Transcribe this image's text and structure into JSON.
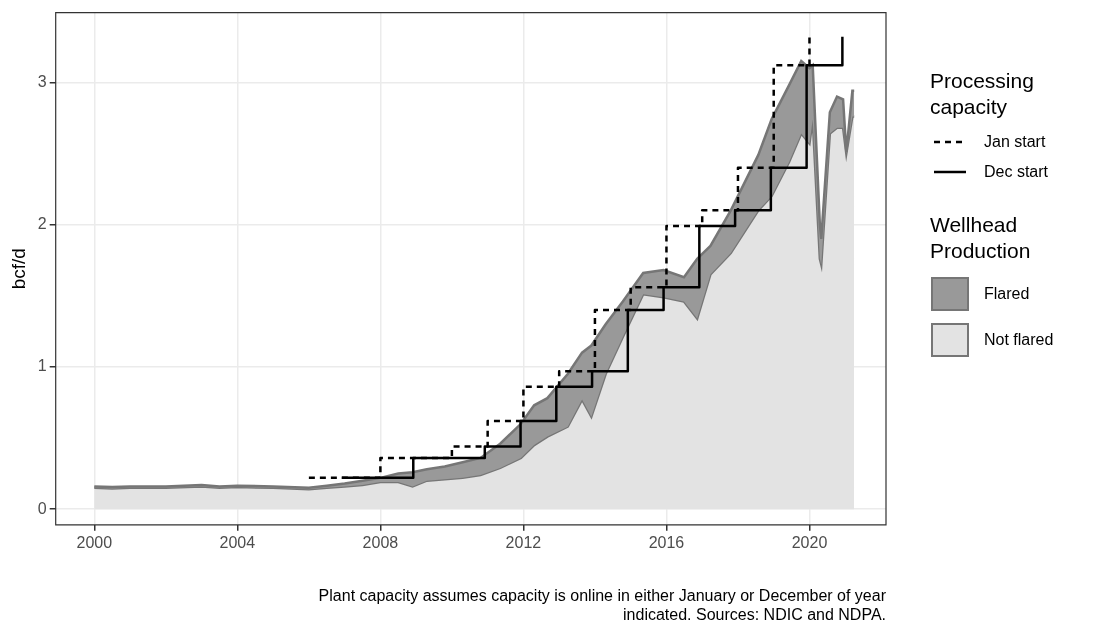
{
  "chart_data": {
    "type": "area",
    "stacked": true,
    "ylabel": "bcf/d",
    "x": [
      2000.0,
      2000.5,
      2001.0,
      2002.0,
      2003.0,
      2003.5,
      2004.0,
      2005.0,
      2006.0,
      2006.5,
      2007.0,
      2007.5,
      2008.0,
      2008.5,
      2008.9,
      2009.3,
      2009.8,
      2010.3,
      2010.8,
      2011.35,
      2011.93,
      2012.3,
      2012.67,
      2013.24,
      2013.64,
      2013.9,
      2014.3,
      2014.78,
      2015.35,
      2015.92,
      2016.49,
      2016.86,
      2017.23,
      2017.8,
      2018.57,
      2018.94,
      2019.43,
      2019.77,
      2020.0,
      2020.09,
      2020.29,
      2020.33,
      2020.57,
      2020.77,
      2020.94,
      2021.03,
      2021.2,
      2021.25
    ],
    "series": [
      {
        "name": "Not flared",
        "color": "#e3e3e3",
        "values": [
          0.15,
          0.145,
          0.15,
          0.15,
          0.16,
          0.15,
          0.155,
          0.15,
          0.14,
          0.15,
          0.16,
          0.17,
          0.19,
          0.19,
          0.16,
          0.2,
          0.21,
          0.22,
          0.24,
          0.29,
          0.36,
          0.45,
          0.51,
          0.58,
          0.77,
          0.65,
          0.95,
          1.21,
          1.51,
          1.49,
          1.46,
          1.34,
          1.65,
          1.8,
          2.1,
          2.2,
          2.44,
          2.64,
          2.57,
          2.74,
          1.76,
          1.72,
          2.64,
          2.68,
          2.68,
          2.5,
          2.76,
          2.76
        ]
      },
      {
        "name": "Flared",
        "color": "#999999",
        "values": [
          0.01,
          0.01,
          0.01,
          0.01,
          0.01,
          0.01,
          0.01,
          0.01,
          0.01,
          0.015,
          0.02,
          0.03,
          0.03,
          0.06,
          0.1,
          0.08,
          0.09,
          0.11,
          0.12,
          0.17,
          0.24,
          0.28,
          0.27,
          0.37,
          0.33,
          0.5,
          0.35,
          0.25,
          0.15,
          0.19,
          0.17,
          0.42,
          0.2,
          0.3,
          0.39,
          0.54,
          0.54,
          0.51,
          0.53,
          0.38,
          0.24,
          0.18,
          0.15,
          0.22,
          0.2,
          0.01,
          0.18,
          0.18
        ]
      },
      {
        "name": "Jan start",
        "type": "step",
        "color": "#000000",
        "line_style": "dashed",
        "x": [
          2006,
          2008,
          2010,
          2011,
          2012,
          2013,
          2014,
          2015,
          2016,
          2017,
          2018,
          2019,
          2020
        ],
        "values": [
          0.22,
          0.36,
          0.44,
          0.62,
          0.86,
          0.97,
          1.4,
          1.56,
          1.99,
          2.1,
          2.4,
          3.12,
          3.32
        ]
      },
      {
        "name": "Dec start",
        "type": "step",
        "color": "#000000",
        "line_style": "solid",
        "x": [
          2006.92,
          2008.92,
          2010.92,
          2011.92,
          2012.92,
          2013.92,
          2014.92,
          2015.92,
          2016.92,
          2017.92,
          2018.92,
          2019.92,
          2020.92
        ],
        "values": [
          0.22,
          0.36,
          0.44,
          0.62,
          0.86,
          0.97,
          1.4,
          1.56,
          1.99,
          2.1,
          2.4,
          3.12,
          3.32
        ]
      }
    ],
    "xlim": [
      1998.92,
      2022.14
    ],
    "xticks": [
      2000,
      2004,
      2008,
      2012,
      2016,
      2020
    ],
    "ylim": [
      -0.11,
      3.49
    ],
    "yticks": [
      0,
      1,
      2,
      3
    ],
    "grid": true,
    "legend": "right",
    "marker": "none",
    "legend_title": [
      "Processing capacity",
      "Wellhead Production"
    ],
    "annotations": [
      "Plant capacity assumes capacity is online in either January or December of year indicated. Sources: NDIC and NDPA."
    ]
  }
}
